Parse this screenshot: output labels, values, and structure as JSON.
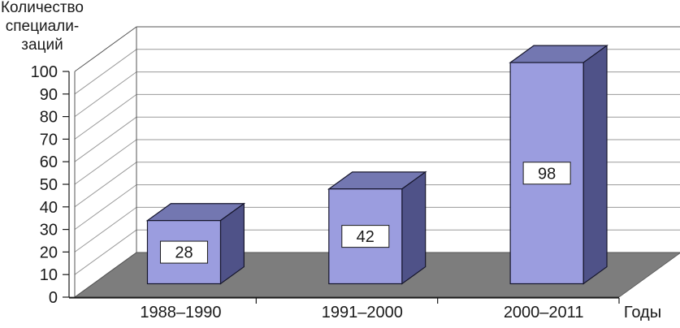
{
  "chart_data": {
    "type": "bar",
    "projection": "3d-oblique",
    "title_lines": [
      "Количество",
      "специали-",
      "заций"
    ],
    "xlabel": "Годы",
    "categories": [
      "1988–1990",
      "1991–2000",
      "2000–2011"
    ],
    "values": [
      28,
      42,
      98
    ],
    "value_labels": [
      "28",
      "42",
      "98"
    ],
    "ylim": [
      0,
      100
    ],
    "ytick_step": 10,
    "ytick_labels": [
      "0",
      "10",
      "20",
      "30",
      "40",
      "50",
      "60",
      "70",
      "80",
      "90",
      "100"
    ],
    "grid": true,
    "legend": false,
    "colors": {
      "background": "#ffffff",
      "wall": "#ffffff",
      "floor": "#7d7d7d",
      "gridline": "#9a9a9a",
      "structure_line": "#555555",
      "axis_line": "#1a1a1a",
      "bar_front": "#9b9ddf",
      "bar_top": "#7377b1",
      "bar_side": "#4f5288",
      "bar_edge": "#16162c",
      "label_box_bg": "#ffffff",
      "label_box_border": "#1a1a1a",
      "text": "#1a1a1a"
    }
  }
}
